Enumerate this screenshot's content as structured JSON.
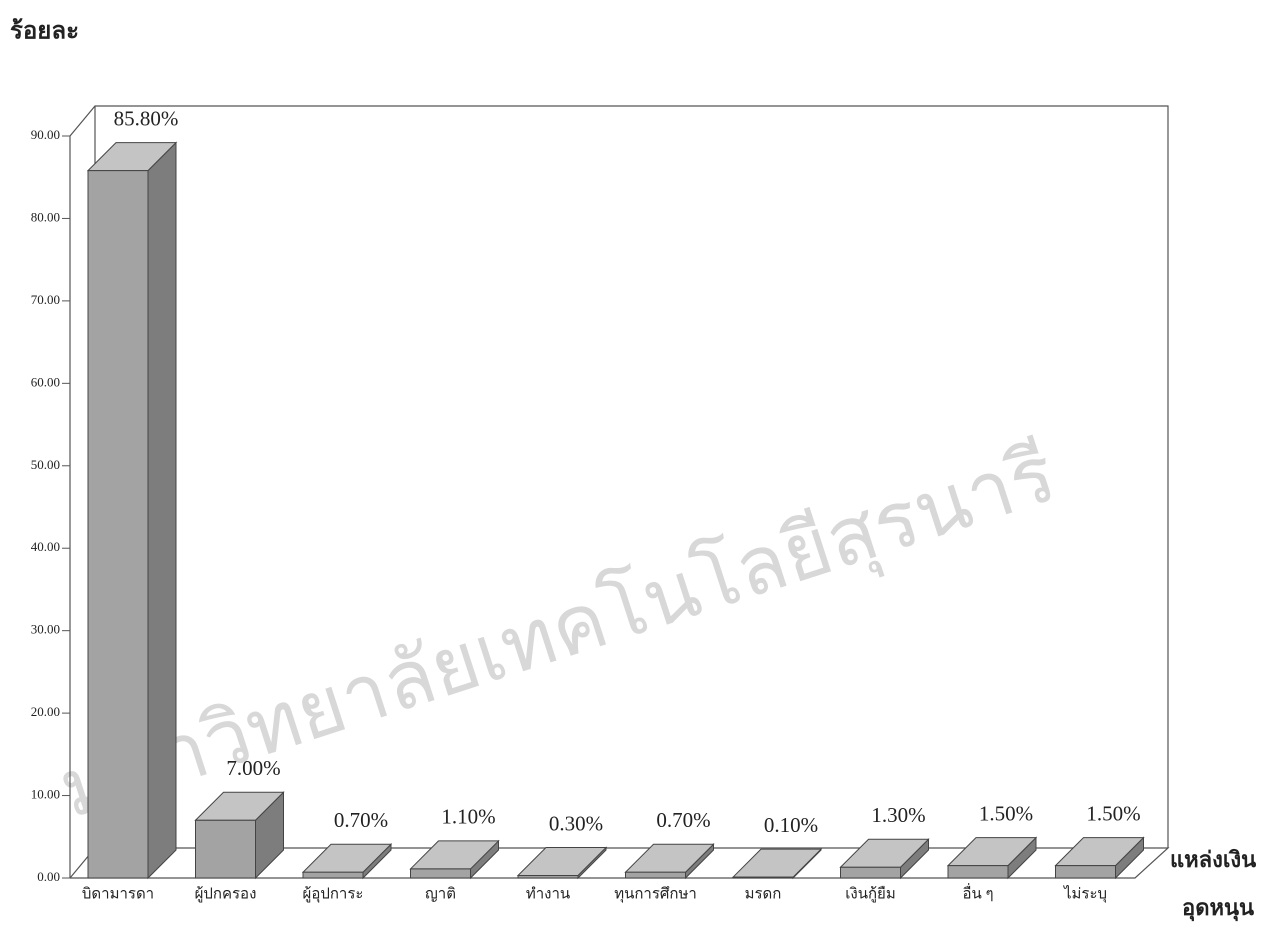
{
  "chart_data": {
    "type": "bar3d",
    "y_label": "ร้อยละ",
    "x_label": [
      "แหล่งเงิน",
      "อุดหนุน"
    ],
    "watermark": "มหาวิทยาลัยเทคโนโลยีสุรนารี",
    "categories": [
      "บิดามารดา",
      "ผู้ปกครอง",
      "ผู้อุปการะ",
      "ญาติ",
      "ทำงาน",
      "ทุนการศึกษา",
      "มรดก",
      "เงินกู้ยืม",
      "อื่น ๆ",
      "ไม่ระบุ"
    ],
    "values": [
      85.8,
      7.0,
      0.7,
      1.1,
      0.3,
      0.7,
      0.1,
      1.3,
      1.5,
      1.5
    ],
    "value_labels": [
      "85.80%",
      "7.00%",
      "0.70%",
      "1.10%",
      "0.30%",
      "0.70%",
      "0.10%",
      "1.30%",
      "1.50%",
      "1.50%"
    ],
    "color": "#a3a3a3",
    "ylim": [
      0,
      90
    ],
    "yticks": [
      {
        "value": 0,
        "label": "0.00"
      },
      {
        "value": 10,
        "label": "10.00"
      },
      {
        "value": 20,
        "label": "20.00"
      },
      {
        "value": 30,
        "label": "30.00"
      },
      {
        "value": 40,
        "label": "40.00"
      },
      {
        "value": 50,
        "label": "50.00"
      },
      {
        "value": 60,
        "label": "60.00"
      },
      {
        "value": 70,
        "label": "70.00"
      },
      {
        "value": 80,
        "label": "80.00"
      },
      {
        "value": 90,
        "label": "90.00"
      }
    ]
  }
}
